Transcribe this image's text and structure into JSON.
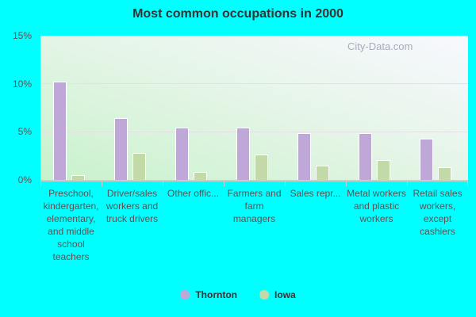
{
  "chart_data": {
    "type": "bar",
    "title": "Most common occupations in 2000",
    "xlabel": "",
    "ylabel": "",
    "ylim": [
      0,
      15
    ],
    "yticks": [
      "0%",
      "5%",
      "10%",
      "15%"
    ],
    "grid": true,
    "legend_position": "bottom",
    "categories": [
      "Preschool, kindergarten, elementary, and middle school teachers",
      "Driver/sales workers and truck drivers",
      "Other offic...",
      "Farmers and farm managers",
      "Sales repr...",
      "Metal workers and plastic workers",
      "Retail sales workers, except cashiers"
    ],
    "series": [
      {
        "name": "Thornton",
        "color": "#bfa8d8",
        "values": [
          10.2,
          6.4,
          5.4,
          5.4,
          4.9,
          4.9,
          4.3
        ]
      },
      {
        "name": "Iowa",
        "color": "#c4d9a8",
        "values": [
          0.5,
          2.8,
          0.8,
          2.6,
          1.5,
          2.1,
          1.3
        ]
      }
    ],
    "watermark": "City-Data.com"
  }
}
